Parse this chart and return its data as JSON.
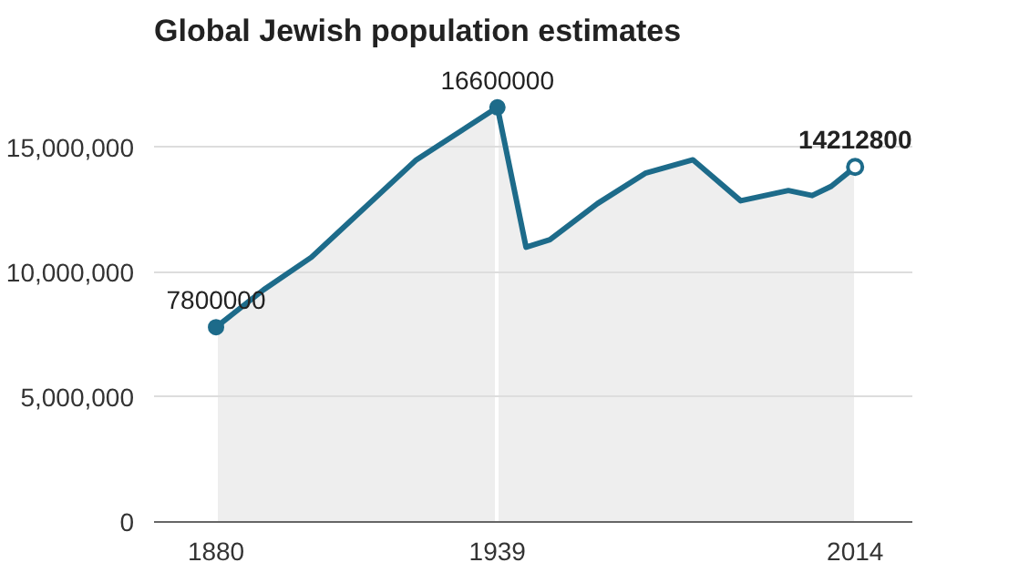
{
  "chart_data": {
    "type": "area",
    "title": "Global Jewish population estimates",
    "x": [
      1880,
      1890,
      1900,
      1922,
      1939,
      1945,
      1950,
      1960,
      1970,
      1980,
      1990,
      2000,
      2005,
      2009,
      2014
    ],
    "series": [
      {
        "color": "#1d6b8a",
        "values": [
          7800000,
          9300000,
          10600000,
          14500000,
          16600000,
          11000000,
          11300000,
          12750000,
          13960000,
          14500000,
          12860000,
          13270000,
          13070000,
          13440000,
          14212800
        ],
        "value_labels": [
          "7800000",
          null,
          null,
          null,
          "16600000",
          null,
          null,
          null,
          null,
          null,
          null,
          null,
          null,
          null,
          "14212800"
        ]
      }
    ],
    "xlim": [
      1867,
      2026
    ],
    "ylim": [
      0,
      18600000
    ],
    "xticks": [
      1880,
      1939,
      2014
    ],
    "yticks": [
      {
        "value": 0,
        "label": "0"
      },
      {
        "value": 5000000,
        "label": "5,000,000"
      },
      {
        "value": 10000000,
        "label": "10,000,000"
      },
      {
        "value": 15000000,
        "label": "15,000,000"
      }
    ],
    "grid": true,
    "marker": "none",
    "line_style": "solid"
  }
}
